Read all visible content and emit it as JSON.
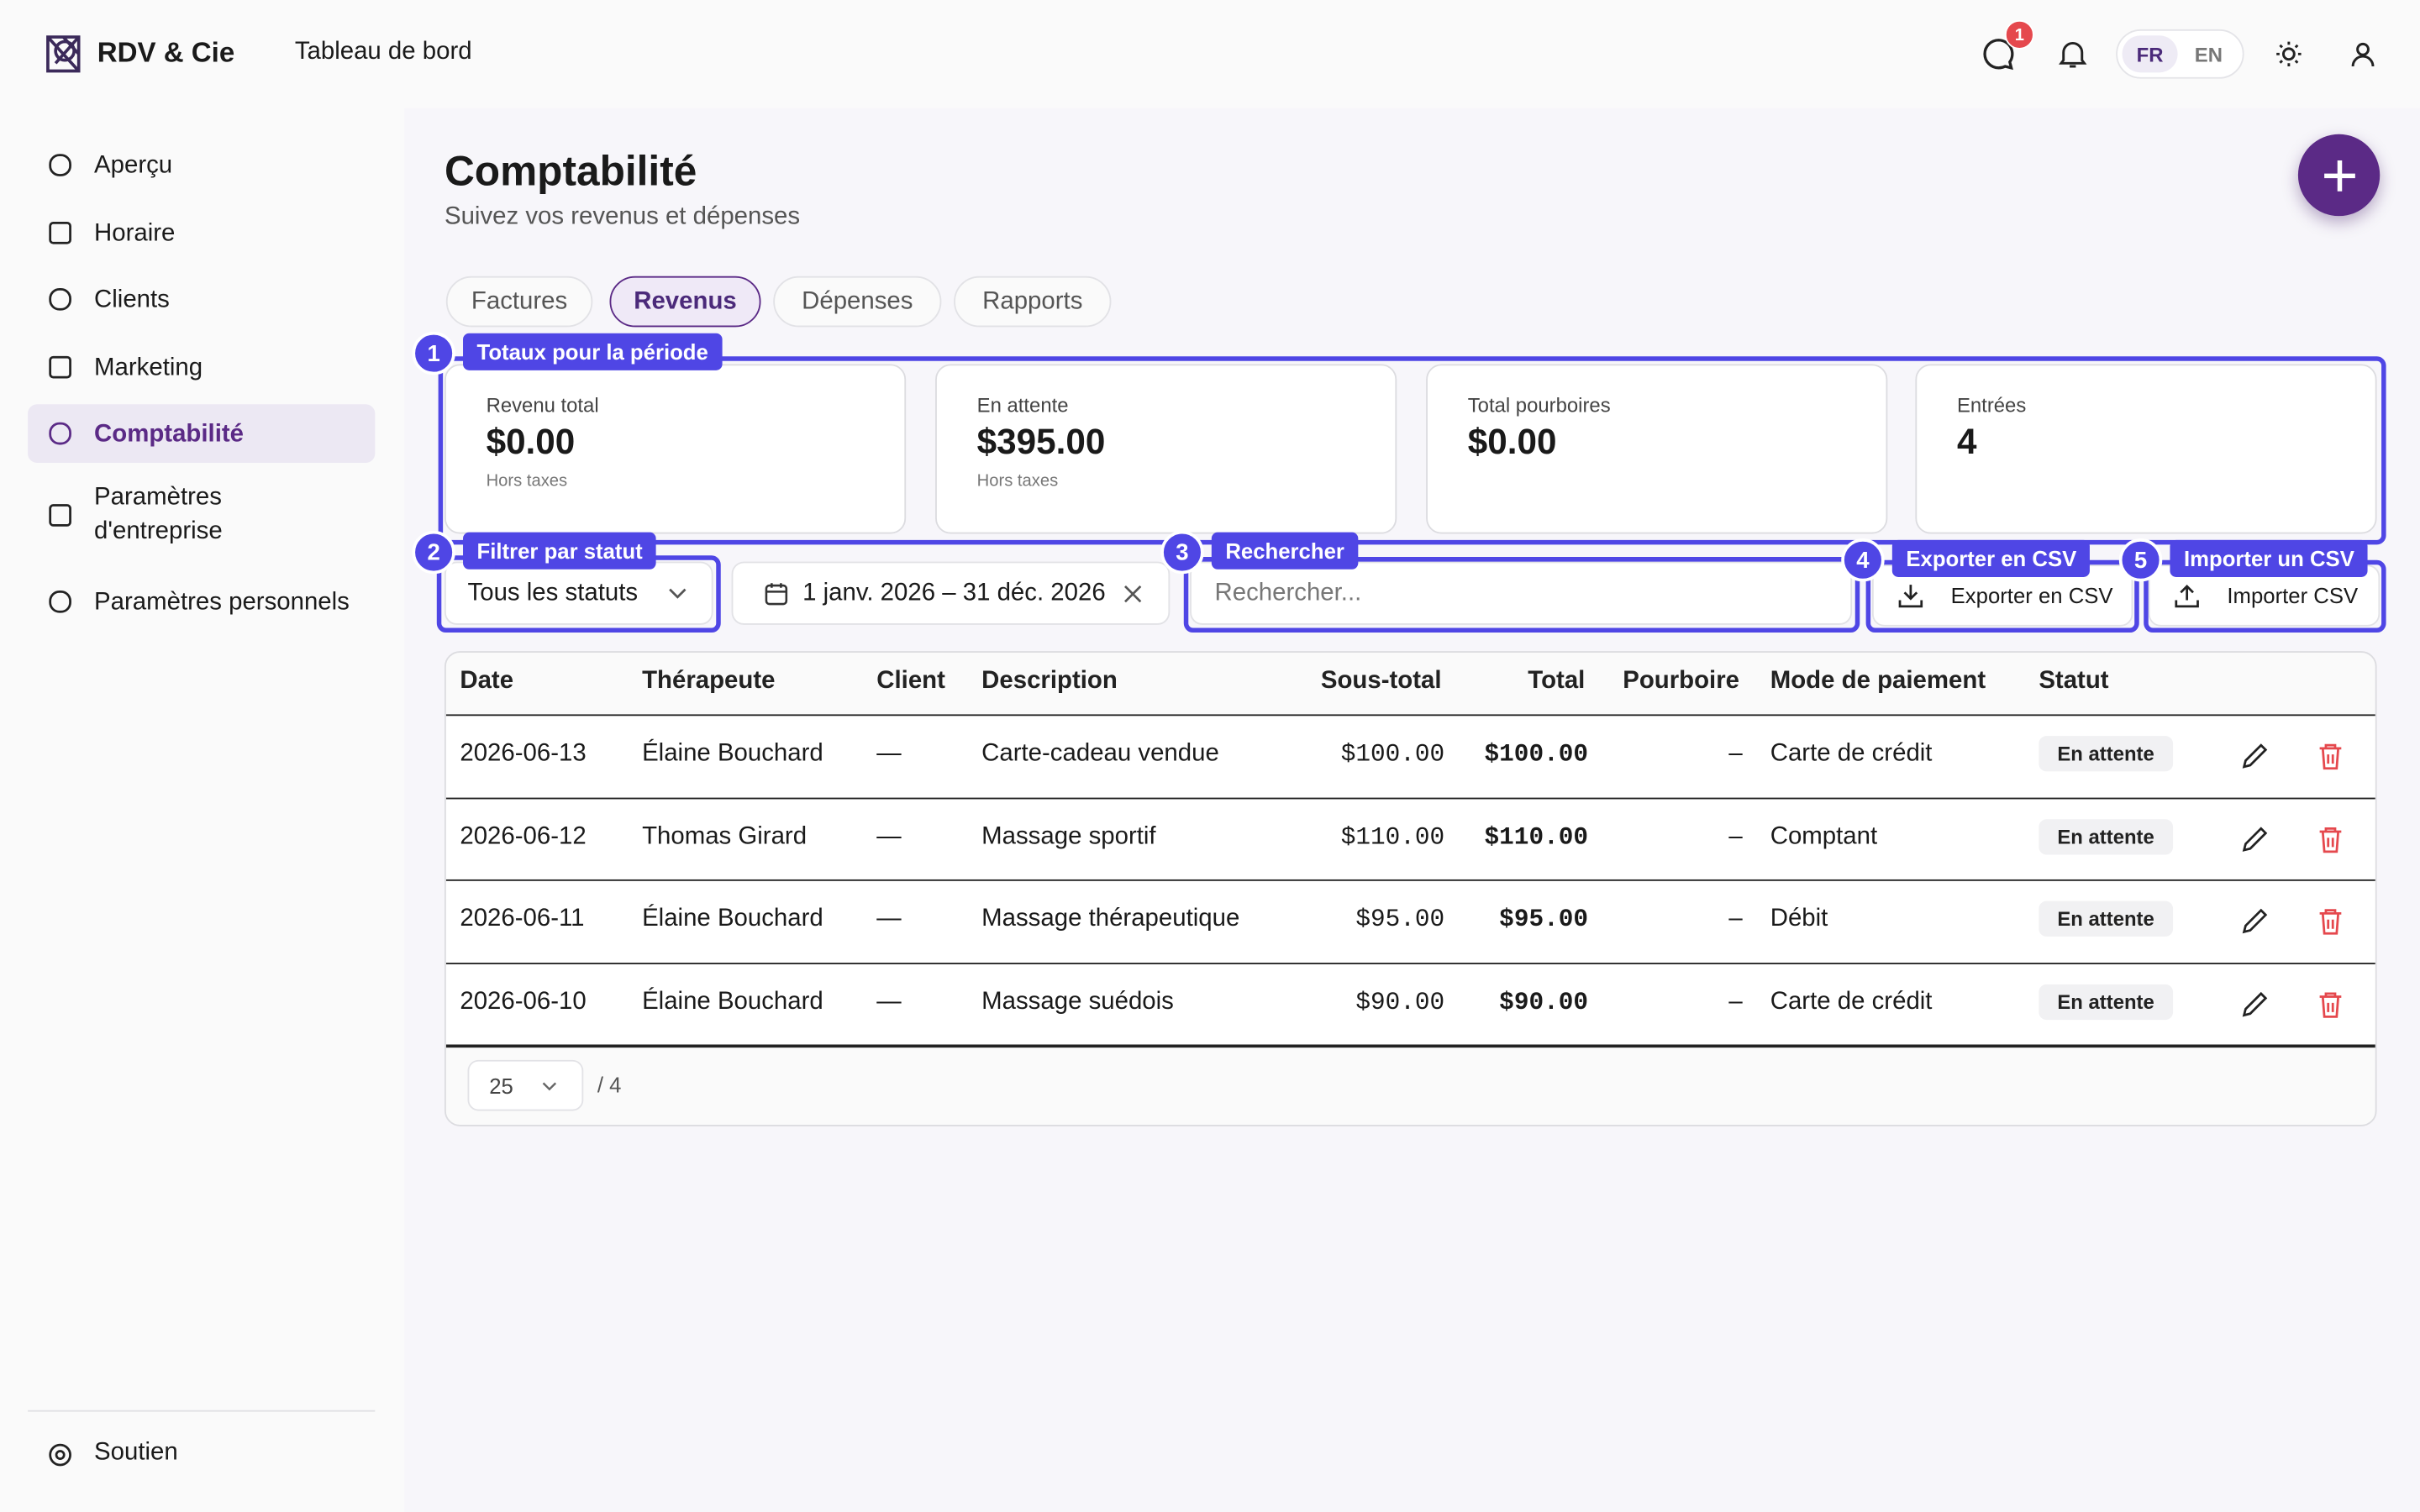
{
  "header": {
    "brand": "RDV & Cie",
    "section": "Tableau de bord",
    "notification_count": 1,
    "languages": [
      "FR",
      "EN"
    ],
    "active_language": 0
  },
  "sidebar": {
    "nav": [
      "Aperçu",
      "Horaire",
      "Clients",
      "Marketing",
      "Comptabilité",
      "Paramètres d'entreprise",
      "Paramètres personnels"
    ],
    "active": 4,
    "footer": "Soutien"
  },
  "page": {
    "title": "Comptabilité",
    "subtitle": "Suivez vos revenus et dépenses"
  },
  "tabs": {
    "items": [
      "Factures",
      "Revenus",
      "Dépenses",
      "Rapports"
    ],
    "active": 1
  },
  "annotations": [
    {
      "number": 1,
      "label": "Totaux pour la période"
    },
    {
      "number": 2,
      "label": "Filtrer par statut"
    },
    {
      "number": 3,
      "label": "Rechercher"
    },
    {
      "number": 4,
      "label": "Exporter en CSV"
    },
    {
      "number": 5,
      "label": "Importer un CSV"
    }
  ],
  "stats": [
    {
      "label": "Revenu total",
      "value": "$0.00",
      "note": "Hors taxes"
    },
    {
      "label": "En attente",
      "value": "$395.00",
      "note": "Hors taxes"
    },
    {
      "label": "Total pourboires",
      "value": "$0.00"
    },
    {
      "label": "Entrées",
      "value": 4
    }
  ],
  "filters": {
    "status": "Tous les statuts",
    "date_range": "1 janv. 2026 – 31 déc. 2026",
    "search_placeholder": "Rechercher...",
    "export": "Exporter en CSV",
    "import": "Importer CSV"
  },
  "table": {
    "columns": [
      "Date",
      "Thérapeute",
      "Client",
      "Description",
      "Sous-total",
      "Total",
      "Pourboire",
      "Mode de paiement",
      "Statut"
    ],
    "rows": [
      [
        "2026-06-13",
        "Élaine Bouchard",
        "—",
        "Carte-cadeau vendue",
        "$100.00",
        "$100.00",
        "–",
        "Carte de crédit",
        "En attente"
      ],
      [
        "2026-06-12",
        "Thomas Girard",
        "—",
        "Massage sportif",
        "$110.00",
        "$110.00",
        "–",
        "Comptant",
        "En attente"
      ],
      [
        "2026-06-11",
        "Élaine Bouchard",
        "—",
        "Massage thérapeutique",
        "$95.00",
        "$95.00",
        "–",
        "Débit",
        "En attente"
      ],
      [
        "2026-06-10",
        "Élaine Bouchard",
        "—",
        "Massage suédois",
        "$90.00",
        "$90.00",
        "–",
        "Carte de crédit",
        "En attente"
      ]
    ]
  },
  "pagination": {
    "page_size": 25,
    "total": "/ 4"
  }
}
